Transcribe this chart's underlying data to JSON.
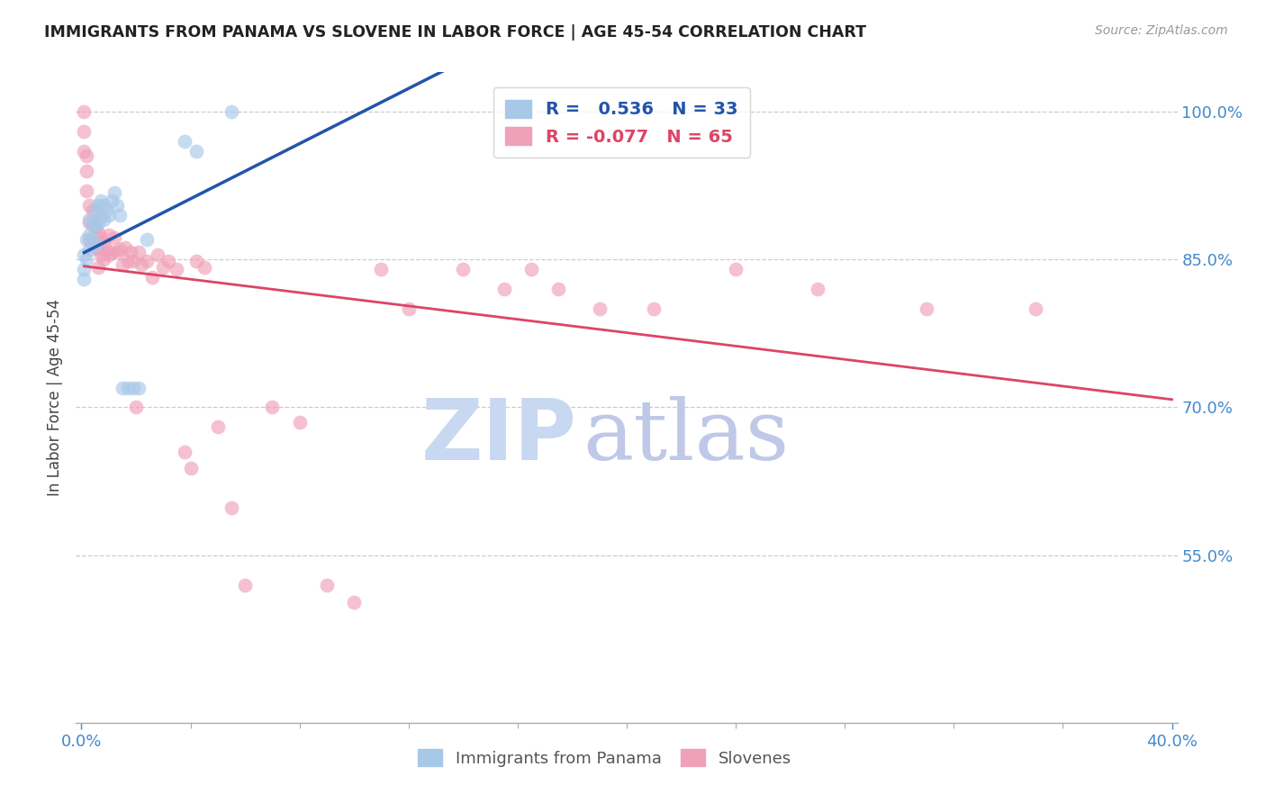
{
  "title": "IMMIGRANTS FROM PANAMA VS SLOVENE IN LABOR FORCE | AGE 45-54 CORRELATION CHART",
  "source": "Source: ZipAtlas.com",
  "ylabel": "In Labor Force | Age 45-54",
  "xlim": [
    -0.002,
    0.402
  ],
  "ylim": [
    0.38,
    1.04
  ],
  "xtick_positions": [
    0.0,
    0.4
  ],
  "xtick_labels": [
    "0.0%",
    "40.0%"
  ],
  "yticks_right": [
    0.55,
    0.7,
    0.85,
    1.0
  ],
  "ytick_labels_right": [
    "55.0%",
    "70.0%",
    "85.0%",
    "100.0%"
  ],
  "legend_r_panama": " 0.536",
  "legend_n_panama": "33",
  "legend_r_slovene": "-0.077",
  "legend_n_slovene": "65",
  "color_panama": "#a8c8e8",
  "color_slovene": "#f0a0b8",
  "color_line_panama": "#2255aa",
  "color_line_slovene": "#dd4466",
  "color_axis_right": "#4488cc",
  "color_axis_bottom": "#4488cc",
  "watermark_zip": "ZIP",
  "watermark_atlas": "atlas",
  "watermark_color_zip": "#c8d8f0",
  "watermark_color_atlas": "#c0c8e8",
  "panama_x": [
    0.001,
    0.001,
    0.001,
    0.002,
    0.002,
    0.003,
    0.003,
    0.003,
    0.004,
    0.004,
    0.005,
    0.005,
    0.005,
    0.006,
    0.006,
    0.007,
    0.007,
    0.008,
    0.008,
    0.009,
    0.01,
    0.011,
    0.012,
    0.013,
    0.014,
    0.015,
    0.017,
    0.019,
    0.021,
    0.024,
    0.038,
    0.042,
    0.055
  ],
  "panama_y": [
    0.855,
    0.84,
    0.83,
    0.87,
    0.85,
    0.89,
    0.875,
    0.86,
    0.885,
    0.87,
    0.9,
    0.885,
    0.865,
    0.905,
    0.888,
    0.91,
    0.893,
    0.905,
    0.89,
    0.9,
    0.895,
    0.91,
    0.918,
    0.905,
    0.895,
    0.72,
    0.72,
    0.72,
    0.72,
    0.87,
    0.97,
    0.96,
    1.0
  ],
  "slovene_x": [
    0.001,
    0.001,
    0.001,
    0.002,
    0.002,
    0.002,
    0.003,
    0.003,
    0.003,
    0.004,
    0.004,
    0.004,
    0.005,
    0.005,
    0.006,
    0.006,
    0.006,
    0.007,
    0.007,
    0.008,
    0.008,
    0.009,
    0.01,
    0.01,
    0.011,
    0.012,
    0.013,
    0.014,
    0.015,
    0.016,
    0.017,
    0.018,
    0.019,
    0.02,
    0.021,
    0.022,
    0.024,
    0.026,
    0.028,
    0.03,
    0.032,
    0.035,
    0.038,
    0.04,
    0.042,
    0.045,
    0.05,
    0.055,
    0.06,
    0.07,
    0.08,
    0.09,
    0.1,
    0.11,
    0.12,
    0.14,
    0.155,
    0.165,
    0.175,
    0.19,
    0.21,
    0.24,
    0.27,
    0.31,
    0.35
  ],
  "slovene_y": [
    1.0,
    0.98,
    0.96,
    0.955,
    0.94,
    0.92,
    0.905,
    0.888,
    0.87,
    0.9,
    0.885,
    0.865,
    0.882,
    0.862,
    0.878,
    0.86,
    0.842,
    0.872,
    0.855,
    0.868,
    0.85,
    0.86,
    0.875,
    0.855,
    0.858,
    0.872,
    0.858,
    0.86,
    0.845,
    0.862,
    0.848,
    0.858,
    0.848,
    0.7,
    0.858,
    0.845,
    0.848,
    0.832,
    0.855,
    0.842,
    0.848,
    0.84,
    0.655,
    0.638,
    0.848,
    0.842,
    0.68,
    0.598,
    0.52,
    0.7,
    0.685,
    0.52,
    0.502,
    0.84,
    0.8,
    0.84,
    0.82,
    0.84,
    0.82,
    0.8,
    0.8,
    0.84,
    0.82,
    0.8,
    0.8
  ]
}
